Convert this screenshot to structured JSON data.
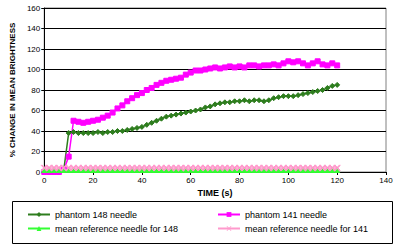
{
  "chart_data": {
    "type": "line",
    "x_label": "TIME (s)",
    "y_label": "% CHANGE IN MEAN BRIGHTNESS",
    "x": [
      0,
      2,
      4,
      6,
      8,
      10,
      12,
      14,
      16,
      18,
      20,
      22,
      24,
      26,
      28,
      30,
      32,
      34,
      36,
      38,
      40,
      42,
      44,
      46,
      48,
      50,
      52,
      54,
      56,
      58,
      60,
      62,
      64,
      66,
      68,
      70,
      72,
      74,
      76,
      78,
      80,
      82,
      84,
      86,
      88,
      90,
      92,
      94,
      96,
      98,
      100,
      102,
      104,
      106,
      108,
      110,
      112,
      114,
      116,
      118,
      120
    ],
    "series": [
      {
        "name": "phantom 148 needle",
        "color": "#2e7d1e",
        "marker": "diamond",
        "values": [
          0,
          0,
          0,
          1,
          2,
          38,
          39,
          38,
          38,
          38,
          38,
          39,
          38,
          39,
          39,
          40,
          40,
          41,
          42,
          43,
          44,
          46,
          48,
          50,
          52,
          54,
          55,
          56,
          57,
          58,
          59,
          60,
          61,
          63,
          64,
          66,
          67,
          68,
          68,
          69,
          69,
          70,
          69,
          70,
          70,
          69,
          70,
          72,
          73,
          74,
          74,
          74,
          75,
          76,
          77,
          78,
          79,
          80,
          82,
          84,
          85
        ]
      },
      {
        "name": "phantom 141 needle",
        "color": "#ff00ff",
        "marker": "square",
        "values": [
          0,
          0,
          0,
          0,
          2,
          15,
          50,
          49,
          48,
          49,
          50,
          51,
          53,
          55,
          58,
          62,
          65,
          69,
          72,
          75,
          77,
          80,
          82,
          85,
          87,
          89,
          90,
          91,
          92,
          95,
          97,
          99,
          99,
          100,
          101,
          102,
          101,
          102,
          103,
          102,
          103,
          102,
          104,
          104,
          103,
          104,
          104,
          105,
          104,
          106,
          108,
          107,
          108,
          106,
          104,
          106,
          108,
          105,
          104,
          106,
          104
        ]
      },
      {
        "name": "mean reference needle for 148",
        "color": "#33ff33",
        "marker": "triangle",
        "values": [
          2,
          2,
          2,
          2,
          2,
          2,
          2,
          2,
          2,
          2,
          2,
          2,
          2,
          2,
          2,
          2,
          2,
          2,
          2,
          2,
          2,
          2,
          2,
          2,
          2,
          2,
          2,
          2,
          2,
          2,
          2,
          2,
          2,
          2,
          2,
          2,
          2,
          2,
          2,
          2,
          2,
          2,
          2,
          2,
          2,
          2,
          2,
          2,
          2,
          2,
          2,
          2,
          2,
          2,
          2,
          2,
          2,
          2,
          2,
          2,
          2
        ]
      },
      {
        "name": "mean reference needle for 141",
        "color": "#ff99cc",
        "marker": "x",
        "values": [
          4,
          4,
          4,
          4,
          4,
          4,
          4,
          4,
          4,
          4,
          4,
          4,
          4,
          4,
          4,
          4,
          4,
          4,
          4,
          4,
          4,
          4,
          4,
          4,
          4,
          4,
          4,
          4,
          4,
          4,
          4,
          4,
          4,
          4,
          4,
          4,
          4,
          4,
          4,
          4,
          4,
          4,
          4,
          4,
          4,
          4,
          4,
          4,
          4,
          4,
          4,
          4,
          4,
          4,
          4,
          4,
          4,
          4,
          4,
          4,
          4
        ]
      }
    ],
    "xlim": [
      0,
      140
    ],
    "xticks": [
      0,
      20,
      40,
      60,
      80,
      100,
      120,
      140
    ],
    "ylim": [
      0,
      160
    ],
    "yticks": [
      0,
      20,
      40,
      60,
      80,
      100,
      120,
      140,
      160
    ],
    "grid": true,
    "legend": "bottom"
  }
}
